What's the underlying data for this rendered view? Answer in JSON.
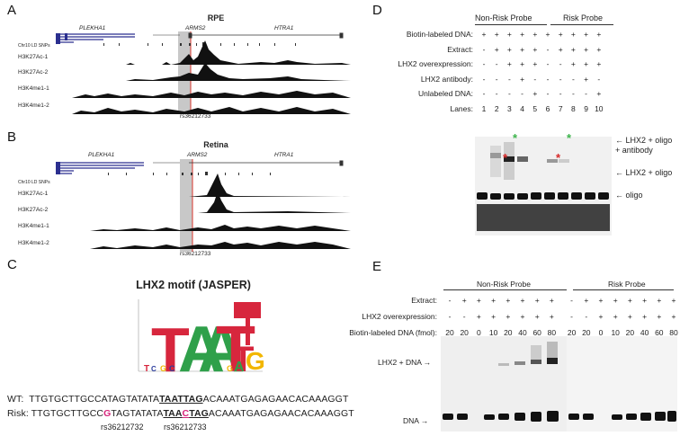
{
  "panels": {
    "A": {
      "label": "A",
      "title": "RPE",
      "genes": [
        "PLEKHA1",
        "ARMS2",
        "HTRA1"
      ],
      "ld_label": "Chr10 LD SNPs",
      "tracks": [
        "H3K27Ac-1",
        "H3K27Ac-2",
        "H3K4me1-1",
        "H3K4me1-2"
      ],
      "snp_label": "rs36212733"
    },
    "B": {
      "label": "B",
      "title": "Retina",
      "genes": [
        "PLEKHA1",
        "ARMS2",
        "HTRA1"
      ],
      "ld_label": "Chr10 LD SNPs",
      "tracks": [
        "H3K27Ac-1",
        "H3K27Ac-2",
        "H3K4me1-1",
        "H3K4me1-2"
      ],
      "snp_label": "rs36212733"
    },
    "C": {
      "label": "C",
      "title": "LHX2 motif (JASPER)",
      "motif_letters": [
        "T",
        "A",
        "A",
        "T",
        "T",
        "A",
        "G"
      ],
      "wt_label": "WT:",
      "wt_pre": "TTGTGCTTGCCATAGTATATA",
      "wt_motif": "TAATTAG",
      "wt_post": "ACAAATGAGAGAACACAAAGGT",
      "risk_label": "Risk:",
      "risk_pre1": "TTGTGCTTGCC",
      "risk_snp1": "G",
      "risk_pre2": "TAGTATATA",
      "risk_motif1": "TAA",
      "risk_snp2": "C",
      "risk_motif2": "TAG",
      "risk_post": "ACAAATGAGAGAACACAAAGGT",
      "snp1": "rs36212732",
      "snp2": "rs36212733"
    },
    "D": {
      "label": "D",
      "group1": "Non-Risk Probe",
      "group2": "Risk Probe",
      "rows": [
        {
          "label": "Biotin-labeled DNA:",
          "cells": [
            "+",
            "+",
            "+",
            "+",
            "+",
            "+",
            "+",
            "+",
            "+",
            "+"
          ]
        },
        {
          "label": "Extract:",
          "cells": [
            "-",
            "+",
            "+",
            "+",
            "+",
            "-",
            "+",
            "+",
            "+",
            "+"
          ]
        },
        {
          "label": "LHX2 overexpression:",
          "cells": [
            "-",
            "-",
            "+",
            "+",
            "+",
            "-",
            "-",
            "+",
            "+",
            "+"
          ]
        },
        {
          "label": "LHX2 antibody:",
          "cells": [
            "-",
            "-",
            "-",
            "+",
            "-",
            "-",
            "-",
            "-",
            "+",
            "-"
          ]
        },
        {
          "label": "Unlabeled DNA:",
          "cells": [
            "-",
            "-",
            "-",
            "-",
            "+",
            "-",
            "-",
            "-",
            "-",
            "+"
          ]
        },
        {
          "label": "Lanes:",
          "cells": [
            "1",
            "2",
            "3",
            "4",
            "5",
            "6",
            "7",
            "8",
            "9",
            "10"
          ]
        }
      ],
      "annot_supershift": "LHX2 + oligo + antibody",
      "annot_complex": "LHX2 + oligo",
      "annot_free": "oligo",
      "star_green": "*",
      "star_red": "*"
    },
    "E": {
      "label": "E",
      "group1": "Non-Risk Probe",
      "group2": "Risk Probe",
      "rows": [
        {
          "label": "Extract:",
          "cells": [
            "-",
            "+",
            "+",
            "+",
            "+",
            "+",
            "+",
            "+",
            "-",
            "+",
            "+",
            "+",
            "+",
            "+",
            "+",
            "+"
          ]
        },
        {
          "label": "LHX2 overexpression:",
          "cells": [
            "-",
            "-",
            "+",
            "+",
            "+",
            "+",
            "+",
            "+",
            "-",
            "-",
            "+",
            "+",
            "+",
            "+",
            "+",
            "+"
          ]
        },
        {
          "label": "Biotin-labeled DNA (fmol):",
          "cells": [
            "20",
            "20",
            "0",
            "10",
            "20",
            "40",
            "60",
            "80",
            "20",
            "20",
            "0",
            "10",
            "20",
            "40",
            "60",
            "80"
          ]
        }
      ],
      "annot_complex": "LHX2 + DNA",
      "annot_free": "DNA"
    }
  },
  "colors": {
    "gene_blue": "#2b2f8f",
    "highlight_gray": "#c8c8c8",
    "snp_red": "#d9352b",
    "motif_red": "#d7263d",
    "motif_blue": "#2d3e9e",
    "motif_green": "#2fa04a",
    "motif_yellow": "#f2b600",
    "snp_magenta": "#d6247a",
    "star_green": "#3cb44b",
    "star_red": "#d62828"
  }
}
